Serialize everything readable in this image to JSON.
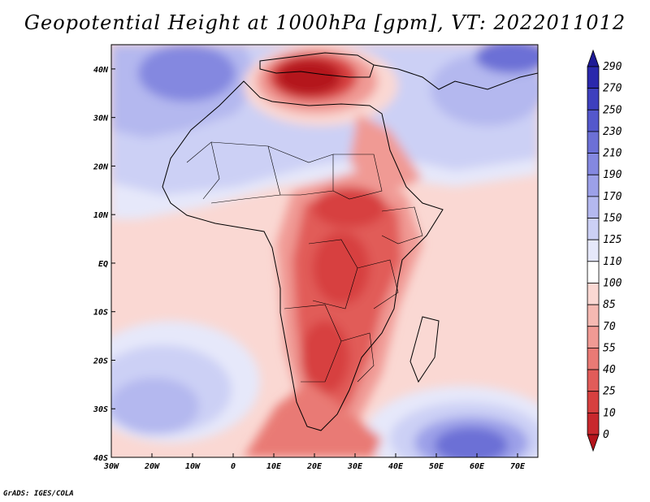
{
  "title": "Geopotential Height at 1000hPa [gpm], VT: 2022011012",
  "credit": "GrADS: IGES/COLA",
  "map": {
    "lon_range": [
      -30,
      75
    ],
    "lat_range": [
      -40,
      45
    ],
    "lon_ticks": [
      {
        "value": -30,
        "label": "30W"
      },
      {
        "value": -20,
        "label": "20W"
      },
      {
        "value": -10,
        "label": "10W"
      },
      {
        "value": 0,
        "label": "0"
      },
      {
        "value": 10,
        "label": "10E"
      },
      {
        "value": 20,
        "label": "20E"
      },
      {
        "value": 30,
        "label": "30E"
      },
      {
        "value": 40,
        "label": "40E"
      },
      {
        "value": 50,
        "label": "50E"
      },
      {
        "value": 60,
        "label": "60E"
      },
      {
        "value": 70,
        "label": "70E"
      }
    ],
    "lat_ticks": [
      {
        "value": 40,
        "label": "40N"
      },
      {
        "value": 30,
        "label": "30N"
      },
      {
        "value": 20,
        "label": "20N"
      },
      {
        "value": 10,
        "label": "10N"
      },
      {
        "value": 0,
        "label": "EQ"
      },
      {
        "value": -10,
        "label": "10S"
      },
      {
        "value": -20,
        "label": "20S"
      },
      {
        "value": -30,
        "label": "30S"
      },
      {
        "value": -40,
        "label": "40S"
      }
    ]
  },
  "colorbar": {
    "levels": [
      0,
      10,
      25,
      40,
      55,
      70,
      85,
      100,
      110,
      125,
      150,
      170,
      190,
      210,
      230,
      250,
      270,
      290
    ],
    "colors": [
      "#b4141c",
      "#c8282d",
      "#d7403f",
      "#e15c59",
      "#e97a75",
      "#f09a94",
      "#f5b9b2",
      "#fad8d3",
      "#ffffff",
      "#e6e8fa",
      "#ccd0f5",
      "#b4b8ef",
      "#9ca0e8",
      "#8488e0",
      "#6c70d6",
      "#5458cc",
      "#3e40be",
      "#2a28ac",
      "#1e1a96"
    ]
  }
}
